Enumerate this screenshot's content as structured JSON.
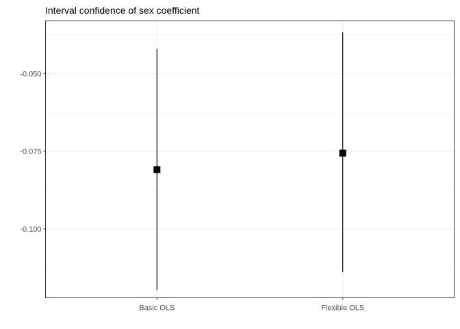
{
  "chart_data": {
    "type": "errorbar",
    "title": "Interval confidence of sex coefficient",
    "xlabel": "",
    "ylabel": "",
    "categories": [
      "Basic OLS",
      "Flexible OLS"
    ],
    "estimates": [
      -0.0809,
      -0.0756
    ],
    "lower": [
      -0.1197,
      -0.1139
    ],
    "upper": [
      -0.042,
      -0.0367
    ],
    "ylim": [
      -0.1222,
      -0.033
    ],
    "yticks": [
      -0.1,
      -0.075,
      -0.05
    ],
    "ytick_labels": [
      "-0.100",
      "-0.075",
      "-0.050"
    ],
    "grid": true,
    "legend": "none",
    "colors": {
      "mark": "#000000",
      "grid": "#ebebeb",
      "panel_border": "#333333",
      "tick_text": "#4d4d4d"
    }
  }
}
